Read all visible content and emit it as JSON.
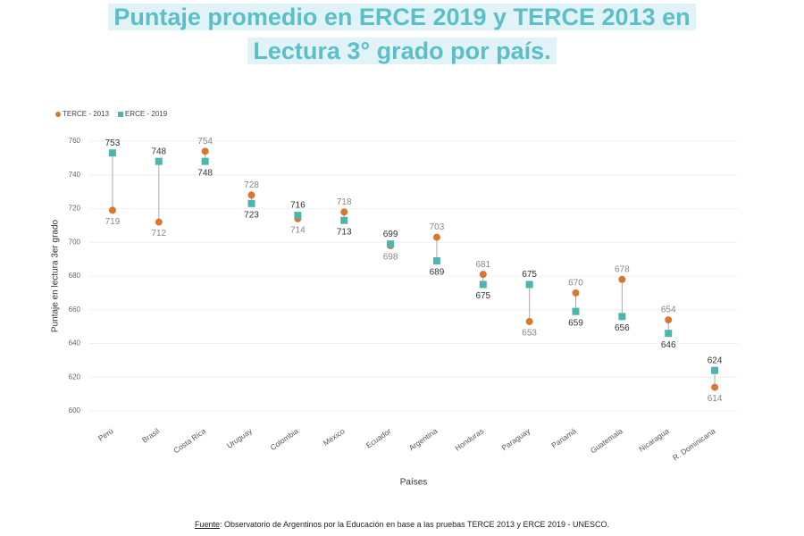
{
  "chart_data": {
    "type": "dumbbell",
    "title": [
      "Puntaje promedio en ERCE 2019 y TERCE 2013 en",
      "Lectura 3° grado por país."
    ],
    "y_label": "Puntaje en lectura 3er grado",
    "x_label": "Países",
    "categories": [
      "Perú",
      "Brasil",
      "Costa Rica",
      "Uruguay",
      "Colombia",
      "Mexico",
      "Ecuador",
      "Argentina",
      "Honduras",
      "Paraguay",
      "Panamá",
      "Guatemala",
      "Nicaragua",
      "R. Dominicana"
    ],
    "series": [
      {
        "name": "TERCE - 2013",
        "color": "#d9782d",
        "marker": "circle",
        "label_color": "#888888",
        "values": [
          719,
          712,
          754,
          728,
          714,
          718,
          698,
          703,
          681,
          653,
          670,
          678,
          654,
          614
        ]
      },
      {
        "name": "ERCE - 2019",
        "color": "#4db6ac",
        "marker": "square",
        "label_color": "#333333",
        "values": [
          753,
          748,
          748,
          723,
          716,
          713,
          699,
          689,
          675,
          675,
          659,
          656,
          646,
          624
        ]
      }
    ],
    "ylim": [
      600,
      760
    ],
    "yticks": [
      600,
      620,
      640,
      660,
      680,
      700,
      720,
      740,
      760
    ],
    "grid": true,
    "source": {
      "label": "Fuente",
      "text": ": Observatorio de Argentinos por la Educación en base a las pruebas TERCE 2013 y ERCE 2019 - UNESCO."
    }
  }
}
